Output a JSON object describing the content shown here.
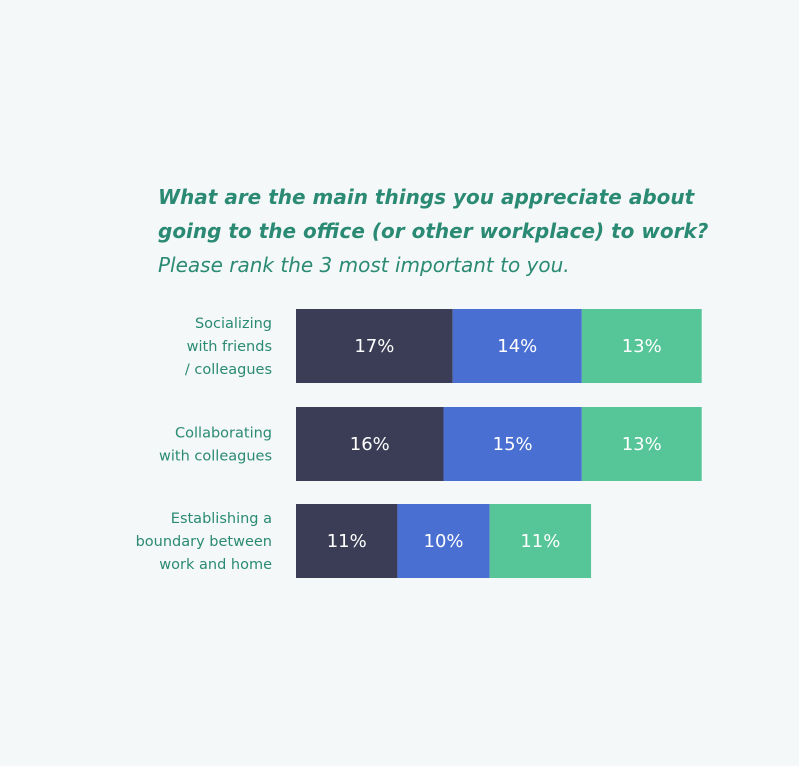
{
  "chart_data": {
    "type": "bar",
    "orientation": "horizontal",
    "stacked": true,
    "title_lines": [
      "What are the main things you appreciate about",
      "going to the office (or other workplace) to work?"
    ],
    "subtitle": "Please rank the 3 most important to you.",
    "categories": [
      [
        "Socializing",
        "with friends",
        "/ colleagues"
      ],
      [
        "Collaborating",
        "with colleagues"
      ],
      [
        "Establishing a",
        "boundary between",
        "work and home"
      ]
    ],
    "series": [
      {
        "values": [
          17,
          16,
          11
        ],
        "labels": [
          "17%",
          "16%",
          "11%"
        ],
        "color": "#3a3d55"
      },
      {
        "values": [
          14,
          15,
          10
        ],
        "labels": [
          "14%",
          "15%",
          "10%"
        ],
        "color": "#4a6fd3"
      },
      {
        "values": [
          13,
          13,
          11
        ],
        "labels": [
          "13%",
          "13%",
          "11%"
        ],
        "color": "#56c597"
      }
    ],
    "unit": "%",
    "xlim": [
      0,
      45
    ],
    "grid": false,
    "legend": "none",
    "colors": {
      "title": "#2a8a73",
      "background": "#f4f8f8"
    }
  }
}
